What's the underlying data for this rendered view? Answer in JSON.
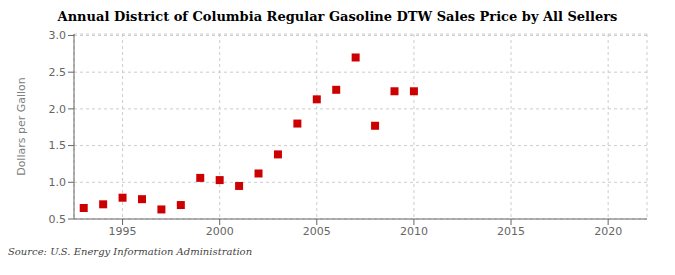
{
  "chart_data": {
    "type": "scatter",
    "title": "Annual District of Columbia Regular Gasoline DTW Sales Price by All Sellers",
    "ylabel": "Dollars per Gallon",
    "source": "Source: U.S. Energy Information Administration",
    "x": [
      1993,
      1994,
      1995,
      1996,
      1997,
      1998,
      1999,
      2000,
      2001,
      2002,
      2003,
      2004,
      2005,
      2006,
      2007,
      2008,
      2009,
      2010
    ],
    "values": [
      0.65,
      0.7,
      0.79,
      0.77,
      0.63,
      0.69,
      1.06,
      1.03,
      0.95,
      1.12,
      1.38,
      1.8,
      2.13,
      2.26,
      2.7,
      1.77,
      2.24,
      2.24
    ],
    "color": "#cc0000",
    "marker": "square",
    "xlim": [
      1992.5,
      2022
    ],
    "ylim": [
      0.5,
      3.02
    ],
    "xticks": [
      1995,
      2000,
      2005,
      2010,
      2015,
      2020
    ],
    "yticks": [
      0.5,
      {
        "value": 1,
        "label": "1.0"
      },
      1.5,
      {
        "value": 2,
        "label": "2.0"
      },
      2.5,
      {
        "value": 3,
        "label": "3.0"
      }
    ],
    "grid": true
  }
}
